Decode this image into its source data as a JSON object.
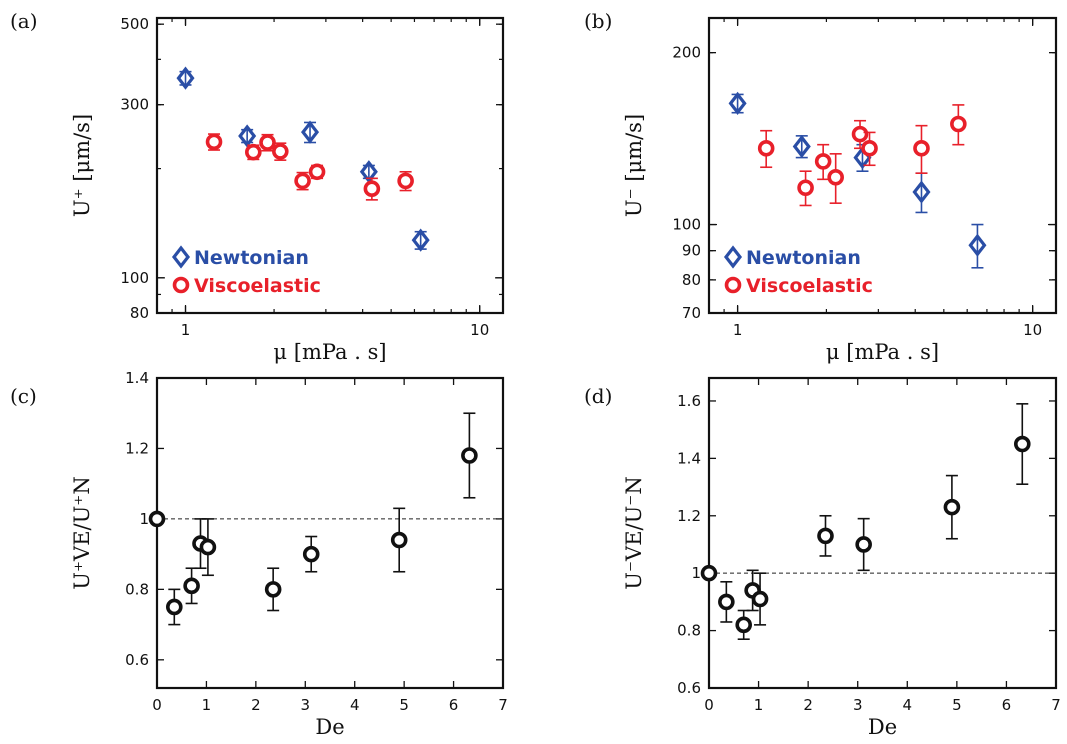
{
  "colors": {
    "newtonian": "#2a4ea6",
    "viscoelastic": "#e8202a",
    "black": "#111111"
  },
  "chart_data": [
    {
      "panel": "(a)",
      "type": "scatter",
      "xscale": "log",
      "yscale": "log",
      "xlim": [
        0.8,
        12
      ],
      "ylim": [
        80,
        520
      ],
      "xticks": [
        1,
        10
      ],
      "xtick_labels": [
        "1",
        "10"
      ],
      "yticks": [
        80,
        100,
        300,
        500
      ],
      "ytick_labels": [
        "80",
        "100",
        "300",
        "500"
      ],
      "xlabel": "μ  [mPa . s]",
      "ylabel": "U⁺  [μm/s]",
      "legend": "lower-left",
      "series": [
        {
          "name": "Newtonian",
          "marker": "diamond",
          "color": "#2a4ea6",
          "x": [
            1.0,
            1.62,
            2.65,
            4.2,
            6.3
          ],
          "y": [
            355,
            246,
            252,
            196,
            127
          ],
          "err": [
            15,
            10,
            16,
            8,
            7
          ]
        },
        {
          "name": "Viscoelastic",
          "marker": "circle",
          "color": "#e8202a",
          "x": [
            1.25,
            1.7,
            1.9,
            2.1,
            2.5,
            2.8,
            4.3,
            5.6
          ],
          "y": [
            237,
            222,
            236,
            223,
            185,
            196,
            176,
            185
          ],
          "err": [
            12,
            10,
            12,
            12,
            10,
            8,
            12,
            11
          ]
        }
      ]
    },
    {
      "panel": "(b)",
      "type": "scatter",
      "xscale": "log",
      "yscale": "log",
      "xlim": [
        0.8,
        12
      ],
      "ylim": [
        70,
        230
      ],
      "xticks": [
        1,
        10
      ],
      "xtick_labels": [
        "1",
        "10"
      ],
      "yticks": [
        70,
        80,
        90,
        100,
        200
      ],
      "ytick_labels": [
        "70",
        "80",
        "90",
        "100",
        "200"
      ],
      "xlabel": "μ  [mPa . s]",
      "ylabel": "U⁻  [μm/s]",
      "legend": "lower-left",
      "series": [
        {
          "name": "Newtonian",
          "marker": "diamond",
          "color": "#2a4ea6",
          "x": [
            1.0,
            1.65,
            2.65,
            4.2,
            6.5
          ],
          "y": [
            163,
            137,
            131,
            114,
            92
          ],
          "err": [
            6,
            6,
            7,
            9,
            8
          ]
        },
        {
          "name": "Viscoelastic",
          "marker": "circle",
          "color": "#e8202a",
          "x": [
            1.25,
            1.7,
            1.95,
            2.15,
            2.6,
            2.8,
            4.2,
            5.6
          ],
          "y": [
            136,
            116,
            129,
            121,
            144,
            136,
            136,
            150
          ],
          "err": [
            10,
            8,
            9,
            12,
            8,
            9,
            13,
            12
          ]
        }
      ]
    },
    {
      "panel": "(c)",
      "type": "scatter",
      "xlim": [
        0,
        7
      ],
      "ylim": [
        0.52,
        1.4
      ],
      "xticks": [
        0,
        1,
        2,
        3,
        4,
        5,
        6,
        7
      ],
      "xtick_labels": [
        "0",
        "1",
        "2",
        "3",
        "4",
        "5",
        "6",
        "7"
      ],
      "yticks": [
        0.6,
        0.8,
        1,
        1.2,
        1.4
      ],
      "ytick_labels": [
        "0.6",
        "0.8",
        "1",
        "1.2",
        "1.4"
      ],
      "xlabel": "De",
      "ylabel": "U⁺VE/U⁺N",
      "reference_line": 1,
      "series": [
        {
          "marker": "circle",
          "color": "#111111",
          "x": [
            0,
            0.35,
            0.7,
            0.88,
            1.03,
            2.35,
            3.12,
            4.9,
            6.32
          ],
          "y": [
            1.0,
            0.75,
            0.81,
            0.93,
            0.92,
            0.8,
            0.9,
            0.94,
            1.18
          ],
          "err": [
            0,
            0.05,
            0.05,
            0.07,
            0.08,
            0.06,
            0.05,
            0.09,
            0.12
          ]
        }
      ]
    },
    {
      "panel": "(d)",
      "type": "scatter",
      "xlim": [
        0,
        7
      ],
      "ylim": [
        0.6,
        1.68
      ],
      "xticks": [
        0,
        1,
        2,
        3,
        4,
        5,
        6,
        7
      ],
      "xtick_labels": [
        "0",
        "1",
        "2",
        "3",
        "4",
        "5",
        "6",
        "7"
      ],
      "yticks": [
        0.6,
        0.8,
        1,
        1.2,
        1.4,
        1.6
      ],
      "ytick_labels": [
        "0.6",
        "0.8",
        "1",
        "1.2",
        "1.4",
        "1.6"
      ],
      "xlabel": "De",
      "ylabel": "U⁻VE/U⁻N",
      "reference_line": 1,
      "series": [
        {
          "marker": "circle",
          "color": "#111111",
          "x": [
            0,
            0.35,
            0.7,
            0.88,
            1.03,
            2.35,
            3.12,
            4.9,
            6.32
          ],
          "y": [
            1.0,
            0.9,
            0.82,
            0.94,
            0.91,
            1.13,
            1.1,
            1.23,
            1.45
          ],
          "err": [
            0,
            0.07,
            0.05,
            0.07,
            0.09,
            0.07,
            0.09,
            0.11,
            0.14
          ]
        }
      ]
    }
  ]
}
